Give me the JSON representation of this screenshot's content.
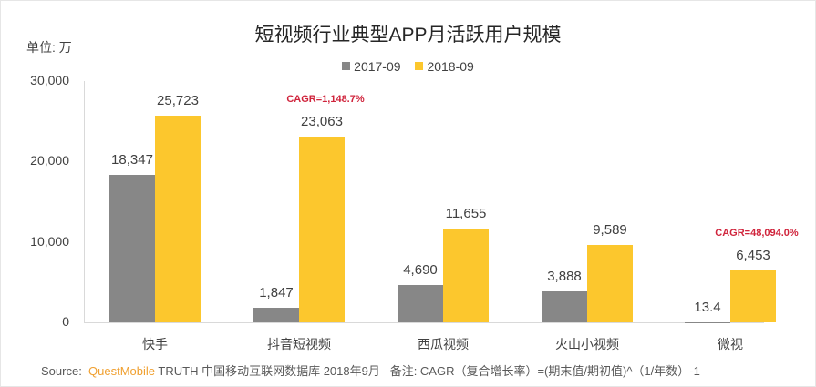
{
  "header": {
    "title": "短视频行业典型APP月活跃用户规模",
    "unit_label": "单位: 万"
  },
  "legend": [
    {
      "label": "2017-09",
      "color": "#878787"
    },
    {
      "label": "2018-09",
      "color": "#fcc72d"
    }
  ],
  "footer": {
    "source_prefix": "Source:",
    "brand": "QuestMobile",
    "source_rest": "TRUTH 中国移动互联网数据库 2018年9月",
    "note": "备注: CAGR（复合增长率）=(期末值/期初值)^（1/年数）-1"
  },
  "chart_data": {
    "type": "bar",
    "title": "短视频行业典型APP月活跃用户规模",
    "xlabel": "",
    "ylabel": "单位: 万",
    "ylim": [
      0,
      30000
    ],
    "yticks": [
      0,
      10000,
      20000,
      30000
    ],
    "ytick_labels": [
      "0",
      "10,000",
      "20,000",
      "30,000"
    ],
    "grid": false,
    "legend_position": "top",
    "categories": [
      "快手",
      "抖音短视频",
      "西瓜视频",
      "火山小视频",
      "微视"
    ],
    "series": [
      {
        "name": "2017-09",
        "color": "#878787",
        "values": [
          18347,
          1847,
          4690,
          3888,
          13.4
        ],
        "labels": [
          "18,347",
          "1,847",
          "4,690",
          "3,888",
          "13.4"
        ]
      },
      {
        "name": "2018-09",
        "color": "#fcc72d",
        "values": [
          25723,
          23063,
          11655,
          9589,
          6453
        ],
        "labels": [
          "25,723",
          "23,063",
          "11,655",
          "9,589",
          "6,453"
        ]
      }
    ],
    "annotations": [
      {
        "category": "抖音短视频",
        "text": "CAGR=1,148.7%",
        "color": "#d0243c"
      },
      {
        "category": "微视",
        "text": "CAGR=48,094.0%",
        "color": "#d0243c"
      }
    ]
  }
}
